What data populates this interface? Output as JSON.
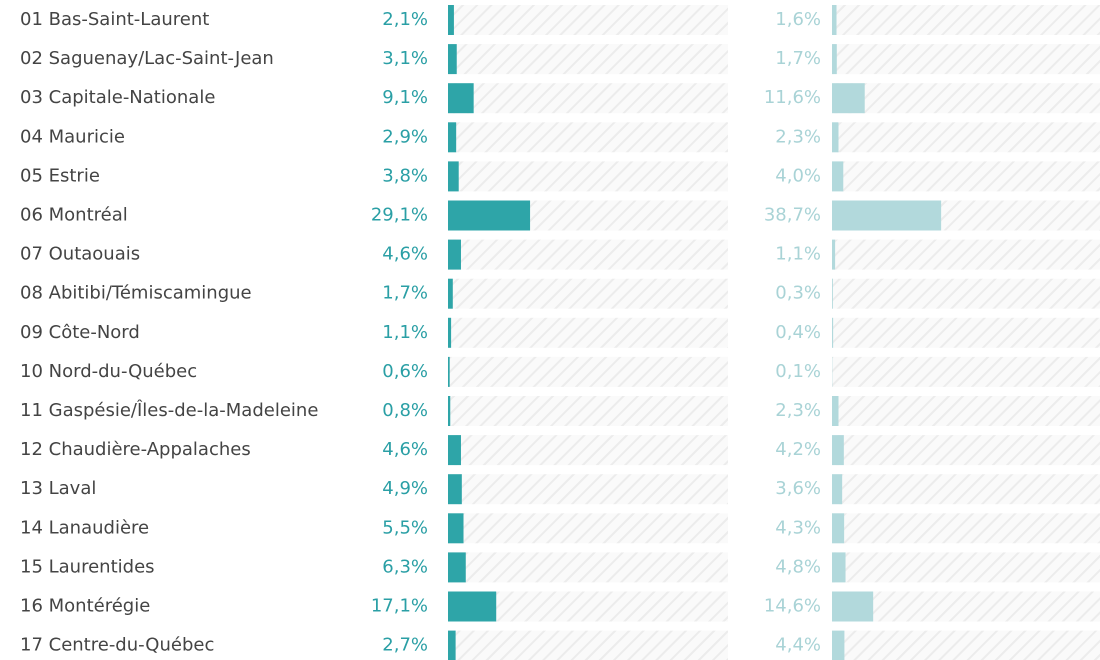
{
  "chart_data": {
    "type": "bar",
    "orientation": "horizontal",
    "categories": [
      "01 Bas-Saint-Laurent",
      "02 Saguenay/Lac-Saint-Jean",
      "03 Capitale-Nationale",
      "04 Mauricie",
      "05 Estrie",
      "06 Montréal",
      "07 Outaouais",
      "08 Abitibi/Témiscamingue",
      "09 Côte-Nord",
      "10 Nord-du-Québec",
      "11 Gaspésie/Îles-de-la-Madeleine",
      "12 Chaudière-Appalaches",
      "13 Laval",
      "14 Lanaudière",
      "15 Laurentides",
      "16 Montérégie",
      "17 Centre-du-Québec"
    ],
    "xlim": [
      0,
      100
    ],
    "series": [
      {
        "color": "#2ea5a8",
        "label_color": "#2a9fa5",
        "values": [
          2.1,
          3.1,
          9.1,
          2.9,
          3.8,
          29.1,
          4.6,
          1.7,
          1.1,
          0.6,
          0.8,
          4.6,
          4.9,
          5.5,
          6.3,
          17.1,
          2.7
        ],
        "value_labels": [
          "2,1%",
          "3,1%",
          "9,1%",
          "2,9%",
          "3,8%",
          "29,1%",
          "4,6%",
          "1,7%",
          "1,1%",
          "0,6%",
          "0,8%",
          "4,6%",
          "4,9%",
          "5,5%",
          "6,3%",
          "17,1%",
          "2,7%"
        ]
      },
      {
        "color": "#b2d9dc",
        "label_color": "#a9d3d6",
        "values": [
          1.6,
          1.7,
          11.6,
          2.3,
          4.0,
          38.7,
          1.1,
          0.3,
          0.4,
          0.1,
          2.3,
          4.2,
          3.6,
          4.3,
          4.8,
          14.6,
          4.4
        ],
        "value_labels": [
          "1,6%",
          "1,7%",
          "11,6%",
          "2,3%",
          "4,0%",
          "38,7%",
          "1,1%",
          "0,3%",
          "0,4%",
          "0,1%",
          "2,3%",
          "4,2%",
          "3,6%",
          "4,3%",
          "4,8%",
          "14,6%",
          "4,4%"
        ]
      }
    ]
  }
}
